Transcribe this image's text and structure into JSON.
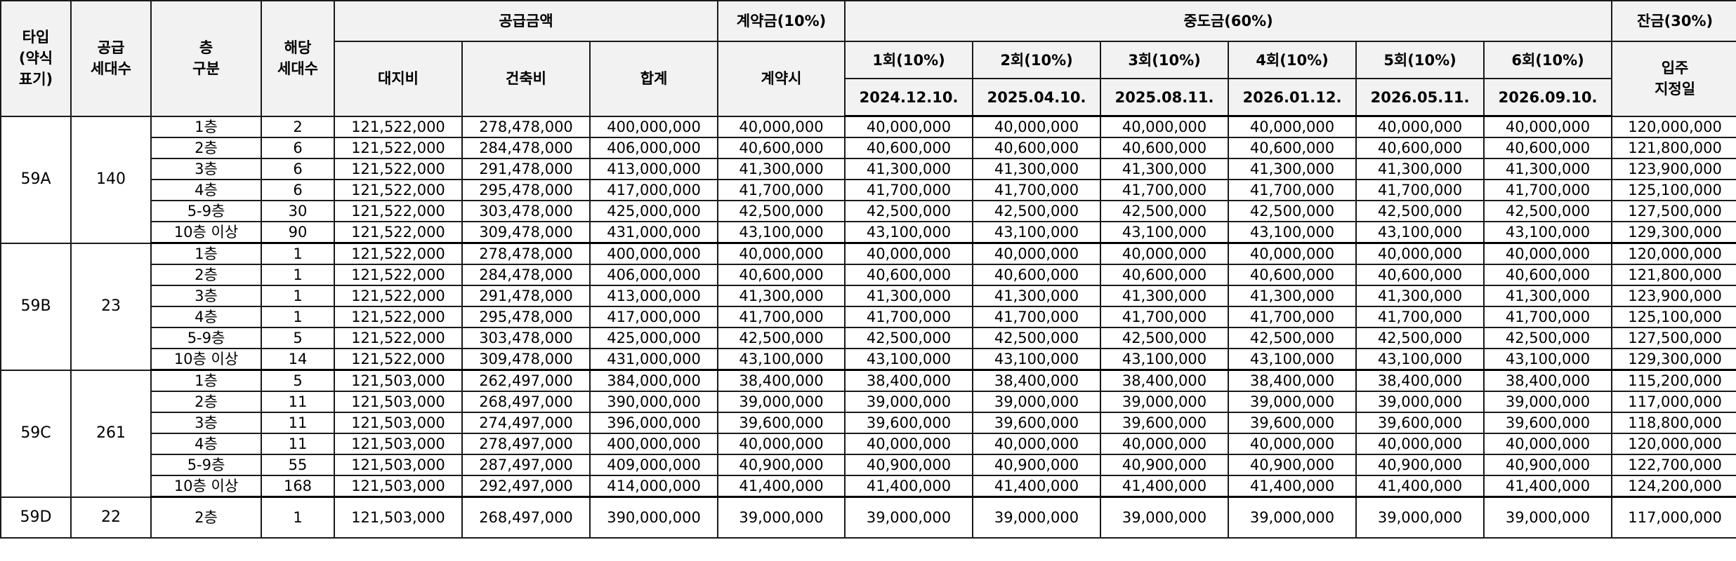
{
  "header": {
    "type": "타입\n(약식\n표기)",
    "supply_units": "공급\n세대수",
    "floor_group": "층\n구분",
    "units": "해당\n세대수",
    "supply_price": "공급금액",
    "land": "대지비",
    "building": "건축비",
    "total": "합계",
    "contract": "계약금(10%)",
    "contract_time": "계약시",
    "middle": "중도금(60%)",
    "installments": [
      {
        "label": "1회(10%)",
        "date": "2024.12.10."
      },
      {
        "label": "2회(10%)",
        "date": "2025.04.10."
      },
      {
        "label": "3회(10%)",
        "date": "2025.08.11."
      },
      {
        "label": "4회(10%)",
        "date": "2026.01.12."
      },
      {
        "label": "5회(10%)",
        "date": "2026.05.11."
      },
      {
        "label": "6회(10%)",
        "date": "2026.09.10."
      }
    ],
    "balance": "잔금(30%)",
    "balance_time": "입주\n지정일"
  },
  "groups": [
    {
      "type": "59A",
      "supply": "140",
      "rows": [
        {
          "floor": "1층",
          "units": "2",
          "land": "121,522,000",
          "building": "278,478,000",
          "total": "400,000,000",
          "contract": "40,000,000",
          "mid": [
            "40,000,000",
            "40,000,000",
            "40,000,000",
            "40,000,000",
            "40,000,000",
            "40,000,000"
          ],
          "balance": "120,000,000"
        },
        {
          "floor": "2층",
          "units": "6",
          "land": "121,522,000",
          "building": "284,478,000",
          "total": "406,000,000",
          "contract": "40,600,000",
          "mid": [
            "40,600,000",
            "40,600,000",
            "40,600,000",
            "40,600,000",
            "40,600,000",
            "40,600,000"
          ],
          "balance": "121,800,000"
        },
        {
          "floor": "3층",
          "units": "6",
          "land": "121,522,000",
          "building": "291,478,000",
          "total": "413,000,000",
          "contract": "41,300,000",
          "mid": [
            "41,300,000",
            "41,300,000",
            "41,300,000",
            "41,300,000",
            "41,300,000",
            "41,300,000"
          ],
          "balance": "123,900,000"
        },
        {
          "floor": "4층",
          "units": "6",
          "land": "121,522,000",
          "building": "295,478,000",
          "total": "417,000,000",
          "contract": "41,700,000",
          "mid": [
            "41,700,000",
            "41,700,000",
            "41,700,000",
            "41,700,000",
            "41,700,000",
            "41,700,000"
          ],
          "balance": "125,100,000"
        },
        {
          "floor": "5-9층",
          "units": "30",
          "land": "121,522,000",
          "building": "303,478,000",
          "total": "425,000,000",
          "contract": "42,500,000",
          "mid": [
            "42,500,000",
            "42,500,000",
            "42,500,000",
            "42,500,000",
            "42,500,000",
            "42,500,000"
          ],
          "balance": "127,500,000"
        },
        {
          "floor": "10층 이상",
          "units": "90",
          "land": "121,522,000",
          "building": "309,478,000",
          "total": "431,000,000",
          "contract": "43,100,000",
          "mid": [
            "43,100,000",
            "43,100,000",
            "43,100,000",
            "43,100,000",
            "43,100,000",
            "43,100,000"
          ],
          "balance": "129,300,000"
        }
      ]
    },
    {
      "type": "59B",
      "supply": "23",
      "rows": [
        {
          "floor": "1층",
          "units": "1",
          "land": "121,522,000",
          "building": "278,478,000",
          "total": "400,000,000",
          "contract": "40,000,000",
          "mid": [
            "40,000,000",
            "40,000,000",
            "40,000,000",
            "40,000,000",
            "40,000,000",
            "40,000,000"
          ],
          "balance": "120,000,000"
        },
        {
          "floor": "2층",
          "units": "1",
          "land": "121,522,000",
          "building": "284,478,000",
          "total": "406,000,000",
          "contract": "40,600,000",
          "mid": [
            "40,600,000",
            "40,600,000",
            "40,600,000",
            "40,600,000",
            "40,600,000",
            "40,600,000"
          ],
          "balance": "121,800,000"
        },
        {
          "floor": "3층",
          "units": "1",
          "land": "121,522,000",
          "building": "291,478,000",
          "total": "413,000,000",
          "contract": "41,300,000",
          "mid": [
            "41,300,000",
            "41,300,000",
            "41,300,000",
            "41,300,000",
            "41,300,000",
            "41,300,000"
          ],
          "balance": "123,900,000"
        },
        {
          "floor": "4층",
          "units": "1",
          "land": "121,522,000",
          "building": "295,478,000",
          "total": "417,000,000",
          "contract": "41,700,000",
          "mid": [
            "41,700,000",
            "41,700,000",
            "41,700,000",
            "41,700,000",
            "41,700,000",
            "41,700,000"
          ],
          "balance": "125,100,000"
        },
        {
          "floor": "5-9층",
          "units": "5",
          "land": "121,522,000",
          "building": "303,478,000",
          "total": "425,000,000",
          "contract": "42,500,000",
          "mid": [
            "42,500,000",
            "42,500,000",
            "42,500,000",
            "42,500,000",
            "42,500,000",
            "42,500,000"
          ],
          "balance": "127,500,000"
        },
        {
          "floor": "10층 이상",
          "units": "14",
          "land": "121,522,000",
          "building": "309,478,000",
          "total": "431,000,000",
          "contract": "43,100,000",
          "mid": [
            "43,100,000",
            "43,100,000",
            "43,100,000",
            "43,100,000",
            "43,100,000",
            "43,100,000"
          ],
          "balance": "129,300,000"
        }
      ]
    },
    {
      "type": "59C",
      "supply": "261",
      "rows": [
        {
          "floor": "1층",
          "units": "5",
          "land": "121,503,000",
          "building": "262,497,000",
          "total": "384,000,000",
          "contract": "38,400,000",
          "mid": [
            "38,400,000",
            "38,400,000",
            "38,400,000",
            "38,400,000",
            "38,400,000",
            "38,400,000"
          ],
          "balance": "115,200,000"
        },
        {
          "floor": "2층",
          "units": "11",
          "land": "121,503,000",
          "building": "268,497,000",
          "total": "390,000,000",
          "contract": "39,000,000",
          "mid": [
            "39,000,000",
            "39,000,000",
            "39,000,000",
            "39,000,000",
            "39,000,000",
            "39,000,000"
          ],
          "balance": "117,000,000"
        },
        {
          "floor": "3층",
          "units": "11",
          "land": "121,503,000",
          "building": "274,497,000",
          "total": "396,000,000",
          "contract": "39,600,000",
          "mid": [
            "39,600,000",
            "39,600,000",
            "39,600,000",
            "39,600,000",
            "39,600,000",
            "39,600,000"
          ],
          "balance": "118,800,000"
        },
        {
          "floor": "4층",
          "units": "11",
          "land": "121,503,000",
          "building": "278,497,000",
          "total": "400,000,000",
          "contract": "40,000,000",
          "mid": [
            "40,000,000",
            "40,000,000",
            "40,000,000",
            "40,000,000",
            "40,000,000",
            "40,000,000"
          ],
          "balance": "120,000,000"
        },
        {
          "floor": "5-9층",
          "units": "55",
          "land": "121,503,000",
          "building": "287,497,000",
          "total": "409,000,000",
          "contract": "40,900,000",
          "mid": [
            "40,900,000",
            "40,900,000",
            "40,900,000",
            "40,900,000",
            "40,900,000",
            "40,900,000"
          ],
          "balance": "122,700,000"
        },
        {
          "floor": "10층 이상",
          "units": "168",
          "land": "121,503,000",
          "building": "292,497,000",
          "total": "414,000,000",
          "contract": "41,400,000",
          "mid": [
            "41,400,000",
            "41,400,000",
            "41,400,000",
            "41,400,000",
            "41,400,000",
            "41,400,000"
          ],
          "balance": "124,200,000"
        }
      ]
    },
    {
      "type": "59D",
      "supply": "22",
      "rows": [
        {
          "floor": "2층",
          "units": "1",
          "land": "121,503,000",
          "building": "268,497,000",
          "total": "390,000,000",
          "contract": "39,000,000",
          "mid": [
            "39,000,000",
            "39,000,000",
            "39,000,000",
            "39,000,000",
            "39,000,000",
            "39,000,000"
          ],
          "balance": "117,000,000"
        }
      ]
    }
  ]
}
